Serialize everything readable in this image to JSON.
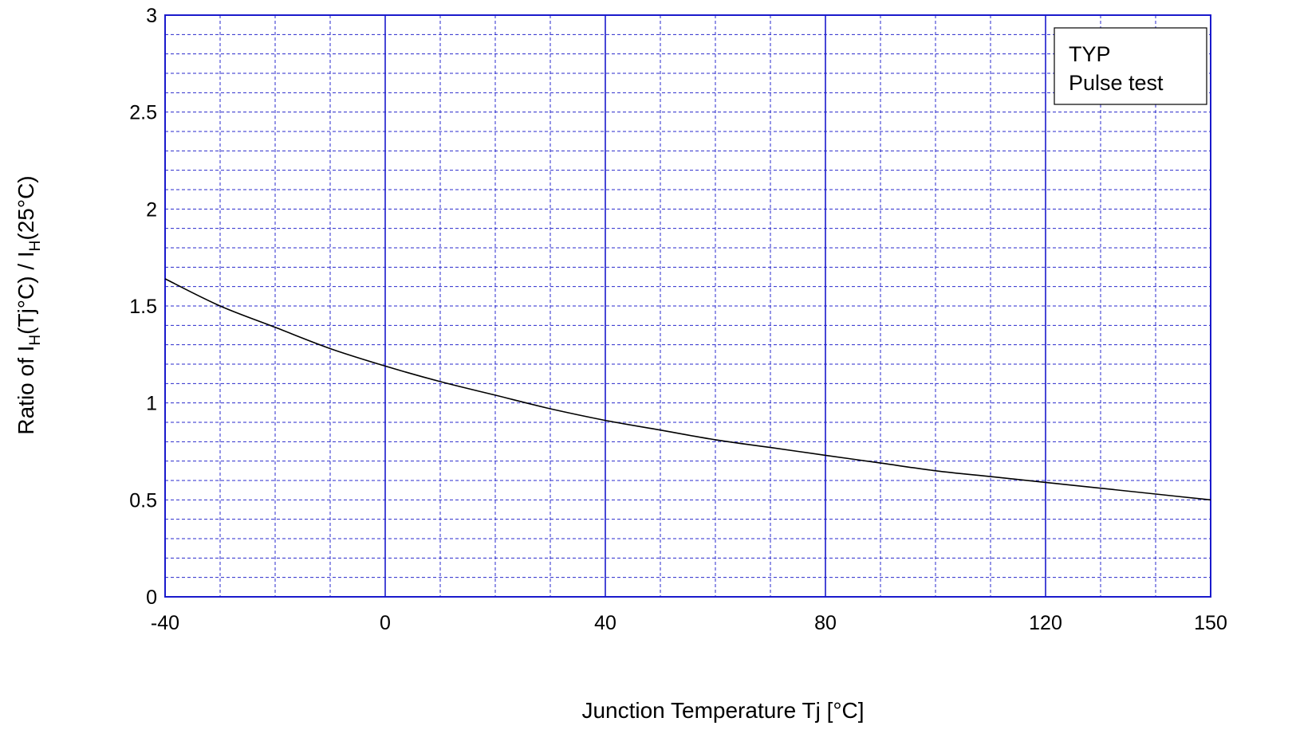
{
  "chart_data": {
    "type": "line",
    "xlabel": "Junction  Temperature    Tj  [°C]",
    "ylabel_parts": [
      "Ratio  of  I",
      "H",
      "(Tj°C)  /  I",
      "H",
      "(25°C)"
    ],
    "xlim": [
      -40,
      150
    ],
    "ylim": [
      0,
      3
    ],
    "x_ticks": [
      -40,
      0,
      40,
      80,
      120,
      150
    ],
    "x_tick_labels": [
      "-40",
      "0",
      "40",
      "80",
      "120",
      "150"
    ],
    "y_ticks": [
      0,
      0.5,
      1,
      1.5,
      2,
      2.5,
      3
    ],
    "y_tick_labels": [
      "0",
      "0.5",
      "1",
      "1.5",
      "2",
      "2.5",
      "3"
    ],
    "x_major_grid": [
      0,
      40,
      80,
      120
    ],
    "x_minor_step": 10,
    "y_minor_step": 0.1,
    "grid": true,
    "legend": {
      "lines": [
        "TYP",
        "Pulse test"
      ],
      "placement": "top-right"
    },
    "colors": {
      "frame": "#1a1acc",
      "grid": "#2a2acc",
      "line": "#000000"
    },
    "series": [
      {
        "x": [
          -40,
          -30,
          -20,
          -10,
          0,
          10,
          20,
          30,
          40,
          50,
          60,
          70,
          80,
          90,
          100,
          110,
          120,
          130,
          140,
          150
        ],
        "values": [
          1.64,
          1.5,
          1.39,
          1.28,
          1.19,
          1.11,
          1.04,
          0.97,
          0.91,
          0.86,
          0.81,
          0.77,
          0.73,
          0.69,
          0.65,
          0.62,
          0.59,
          0.56,
          0.53,
          0.5
        ]
      }
    ]
  }
}
